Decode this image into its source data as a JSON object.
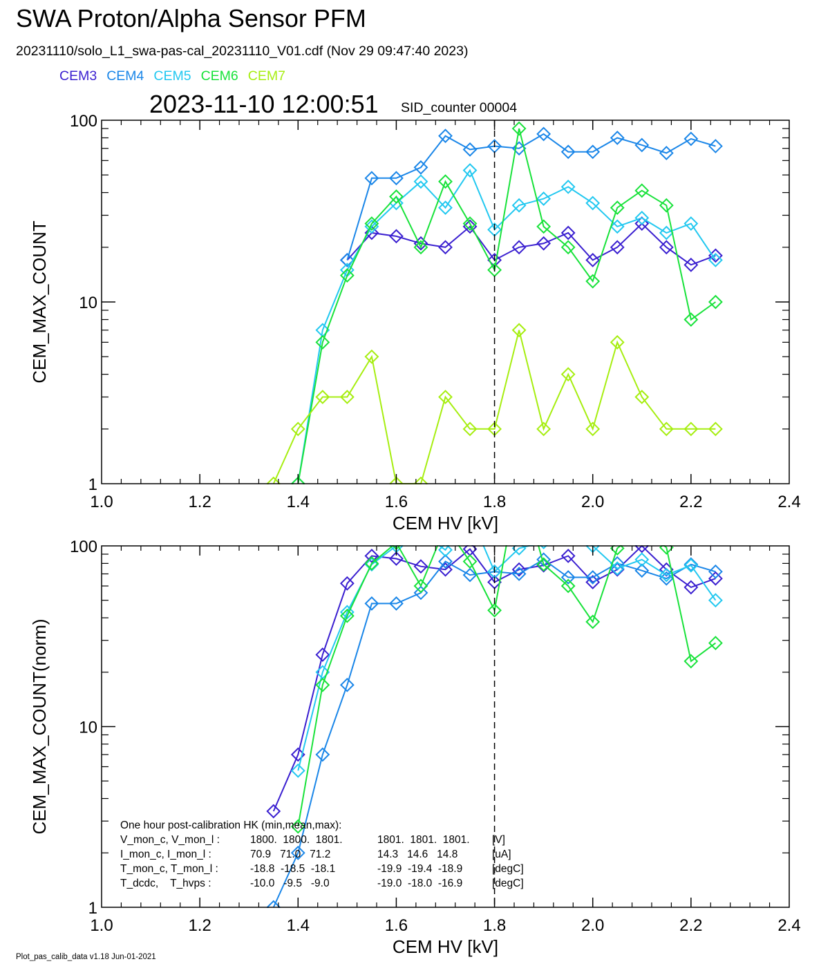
{
  "title": "SWA Proton/Alpha Sensor PFM",
  "subtitle": "20231110/solo_L1_swa-pas-cal_20231110_V01.cdf  (Nov 29 09:47:40 2023)",
  "timestamp": "2023-11-10 12:00:51",
  "sid_counter": "SID_counter 00004",
  "footer": "Plot_pas_calib_data v1.18 Jun-01-2021",
  "legend": [
    {
      "name": "CEM3",
      "color": "#3a1fd0"
    },
    {
      "name": "CEM4",
      "color": "#1a86e8"
    },
    {
      "name": "CEM5",
      "color": "#22c8f0"
    },
    {
      "name": "CEM6",
      "color": "#18e23a"
    },
    {
      "name": "CEM7",
      "color": "#a6ee10"
    }
  ],
  "hk": {
    "heading": "One hour post-calibration HK (min,mean,max):",
    "rows": [
      {
        "label": "V_mon_c, V_mon_l :",
        "a": "1800.  1800.  1801.",
        "b": "1801.  1801.  1801.",
        "unit": "[V]"
      },
      {
        "label": "I_mon_c, I_mon_l :",
        "a": "70.9   71.0   71.2",
        "b": "14.3   14.6   14.8",
        "unit": "[uA]"
      },
      {
        "label": "T_mon_c, T_mon_l :",
        "a": "-18.8  -18.5  -18.1",
        "b": "-19.9  -19.4  -18.9",
        "unit": "[degC]"
      },
      {
        "label": "T_dcdc,    T_hvps :",
        "a": "-10.0   -9.5   -9.0",
        "b": "-19.0  -18.0  -16.9",
        "unit": "[degC]"
      }
    ]
  },
  "chart_data": [
    {
      "type": "line",
      "title": "",
      "xlabel": "CEM HV [kV]",
      "ylabel": "CEM_MAX_COUNT",
      "xlim": [
        1.0,
        2.4
      ],
      "ylim": [
        1,
        100
      ],
      "yscale": "log",
      "xticks": [
        "1.0",
        "1.2",
        "1.4",
        "1.6",
        "1.8",
        "2.0",
        "2.2",
        "2.4"
      ],
      "yticks": [
        "1",
        "10",
        "100"
      ],
      "vline": 1.8,
      "x": [
        1.35,
        1.4,
        1.45,
        1.5,
        1.55,
        1.6,
        1.65,
        1.7,
        1.75,
        1.8,
        1.85,
        1.9,
        1.95,
        2.0,
        2.05,
        2.1,
        2.15,
        2.2,
        2.25
      ],
      "series": [
        {
          "name": "CEM3",
          "color": "#3a1fd0",
          "values": [
            null,
            null,
            null,
            17,
            24,
            23,
            21,
            20,
            26,
            17,
            20,
            21,
            24,
            17,
            20,
            27,
            20,
            16,
            18
          ]
        },
        {
          "name": "CEM4",
          "color": "#1a86e8",
          "values": [
            null,
            null,
            null,
            17,
            48,
            48,
            55,
            82,
            69,
            72,
            70,
            84,
            67,
            67,
            80,
            73,
            66,
            79,
            72
          ]
        },
        {
          "name": "CEM5",
          "color": "#22c8f0",
          "values": [
            null,
            1,
            7,
            15,
            26,
            35,
            46,
            33,
            53,
            25,
            34,
            37,
            43,
            35,
            26,
            29,
            24,
            27,
            17
          ]
        },
        {
          "name": "CEM6",
          "color": "#18e23a",
          "values": [
            null,
            1,
            6,
            14,
            27,
            38,
            20,
            46,
            27,
            15,
            90,
            26,
            20,
            13,
            33,
            41,
            34,
            8,
            10
          ]
        },
        {
          "name": "CEM7",
          "color": "#a6ee10",
          "values": [
            1,
            2,
            3,
            3,
            5,
            1,
            1,
            3,
            2,
            2,
            7,
            2,
            4,
            2,
            6,
            3,
            2,
            2,
            2
          ]
        }
      ]
    },
    {
      "type": "line",
      "title": "",
      "xlabel": "CEM HV [kV]",
      "ylabel": "CEM_MAX_COUNT(norm)",
      "xlim": [
        1.0,
        2.4
      ],
      "ylim": [
        1,
        100
      ],
      "yscale": "log",
      "xticks": [
        "1.0",
        "1.2",
        "1.4",
        "1.6",
        "1.8",
        "2.0",
        "2.2",
        "2.4"
      ],
      "yticks": [
        "1",
        "10",
        "100"
      ],
      "vline": 1.8,
      "x": [
        1.35,
        1.4,
        1.45,
        1.5,
        1.55,
        1.6,
        1.65,
        1.7,
        1.75,
        1.8,
        1.85,
        1.9,
        1.95,
        2.0,
        2.05,
        2.1,
        2.15,
        2.2,
        2.25
      ],
      "series": [
        {
          "name": "CEM3",
          "color": "#3a1fd0",
          "values": [
            3.4,
            7,
            25,
            62,
            88,
            85,
            77,
            74,
            96,
            63,
            74,
            78,
            88,
            63,
            74,
            100,
            74,
            59,
            66
          ]
        },
        {
          "name": "CEM4",
          "color": "#1a86e8",
          "values": [
            1,
            2,
            7,
            17,
            48,
            48,
            55,
            82,
            69,
            72,
            70,
            84,
            67,
            67,
            80,
            73,
            66,
            79,
            72
          ]
        },
        {
          "name": "CEM5",
          "color": "#22c8f0",
          "values": [
            null,
            5.7,
            20,
            43,
            79,
            100,
            118,
            95,
            150,
            72,
            97,
            105,
            123,
            100,
            75,
            84,
            69,
            78,
            50
          ]
        },
        {
          "name": "CEM6",
          "color": "#18e23a",
          "values": [
            null,
            2.8,
            17,
            41,
            80,
            104,
            60,
            128,
            82,
            44,
            245,
            79,
            60,
            38,
            97,
            124,
            98,
            23,
            29
          ]
        },
        {
          "name": "CEM7",
          "color": "#a6ee10",
          "values": [
            null,
            null,
            null,
            null,
            null,
            null,
            null,
            null,
            null,
            null,
            null,
            null,
            null,
            null,
            null,
            null,
            null,
            null,
            null
          ]
        }
      ]
    }
  ]
}
